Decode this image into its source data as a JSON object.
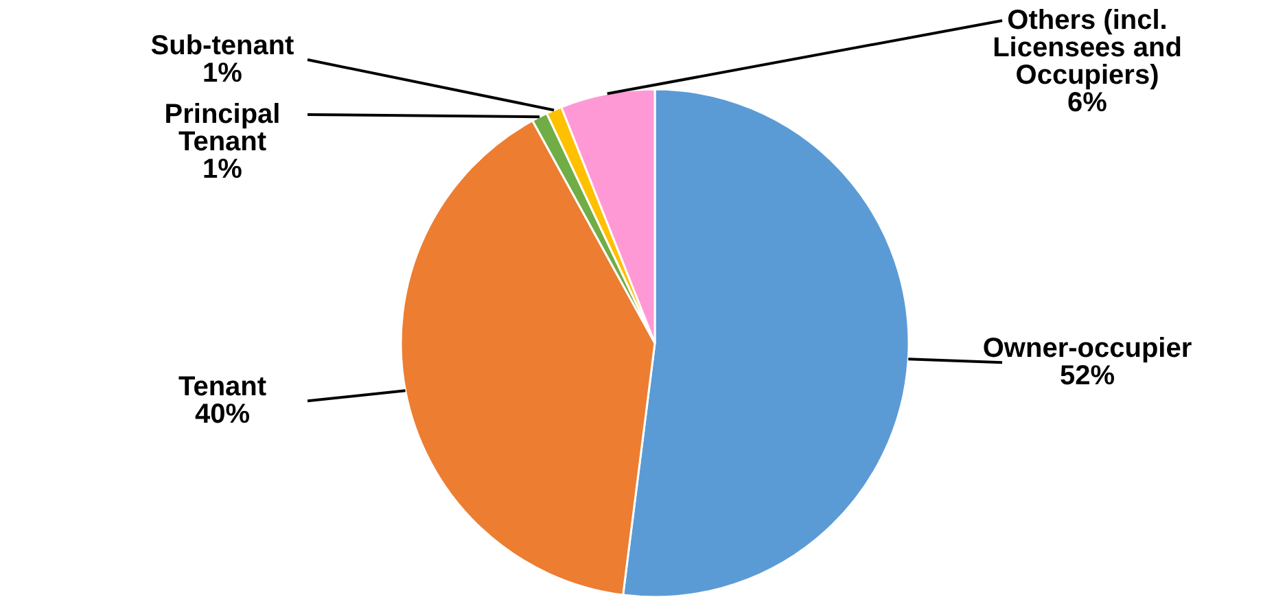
{
  "chart_data": {
    "type": "pie",
    "categories": [
      "Owner-occupier",
      "Tenant",
      "Principal Tenant",
      "Sub-tenant",
      "Others (incl. Licensees and Occupiers)"
    ],
    "values": [
      52,
      40,
      1,
      1,
      6
    ],
    "value_labels": [
      "52%",
      "40%",
      "1%",
      "1%",
      "6%"
    ],
    "colors": [
      "#5b9bd5",
      "#ed7d31",
      "#70ad47",
      "#ffc000",
      "#ff99d6"
    ]
  }
}
